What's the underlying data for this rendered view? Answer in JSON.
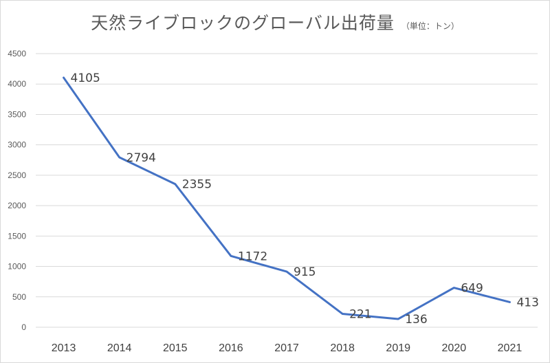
{
  "chart_data": {
    "type": "line",
    "title": "天然ライブロックのグローバル出荷量",
    "unit_note": "（単位：トン）",
    "xlabel": "",
    "ylabel": "",
    "categories": [
      "2013",
      "2014",
      "2015",
      "2016",
      "2017",
      "2018",
      "2019",
      "2020",
      "2021"
    ],
    "series": [
      {
        "values": [
          4105,
          2794,
          2355,
          1172,
          915,
          221,
          136,
          649,
          413
        ]
      }
    ],
    "ylim": [
      0,
      4500
    ],
    "yticks": [
      0,
      500,
      1000,
      1500,
      2000,
      2500,
      3000,
      3500,
      4000,
      4500
    ],
    "grid": true,
    "legend": "none",
    "line_color": "#4472c4",
    "grid_color": "#d9d9d9"
  }
}
